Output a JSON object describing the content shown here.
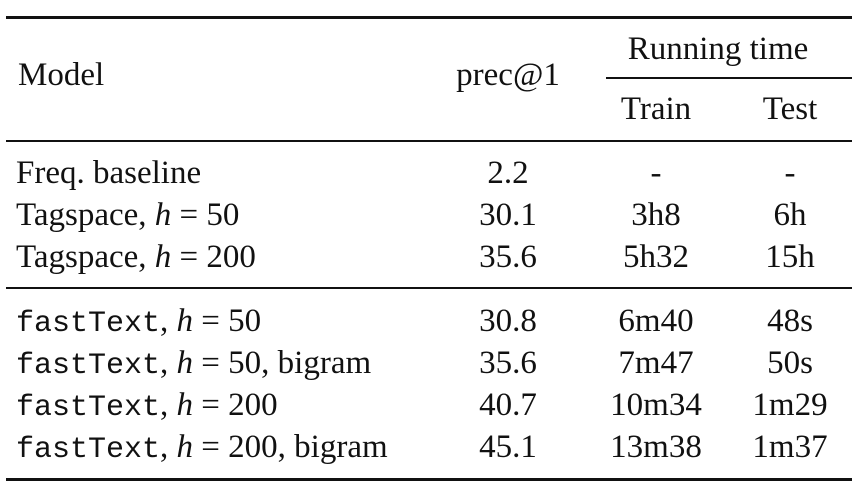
{
  "header": {
    "model": "Model",
    "prec": "prec@1",
    "running_time": "Running time",
    "train": "Train",
    "test": "Test"
  },
  "rows": [
    {
      "model": "Freq. baseline",
      "prec": "2.2",
      "train": "-",
      "test": "-"
    },
    {
      "model_pre": "Tagspace",
      "model_sep": ", ",
      "h_var": "h",
      "h_eq": " = 50",
      "prec": "30.1",
      "train": "3h8",
      "test": "6h"
    },
    {
      "model_pre": "Tagspace",
      "model_sep": ", ",
      "h_var": "h",
      "h_eq": " = 200",
      "prec": "35.6",
      "train": "5h32",
      "test": "15h"
    },
    {
      "model_pre": "fastText",
      "model_sep": ", ",
      "h_var": "h",
      "h_eq": " = 50",
      "prec": "30.8",
      "train": "6m40",
      "test": "48s"
    },
    {
      "model_pre": "fastText",
      "model_sep": ", ",
      "h_var": "h",
      "h_eq": " = 50",
      "suffix": ", bigram",
      "prec": "35.6",
      "train": "7m47",
      "test": "50s"
    },
    {
      "model_pre": "fastText",
      "model_sep": ", ",
      "h_var": "h",
      "h_eq": " = 200",
      "prec": "40.7",
      "train": "10m34",
      "test": "1m29"
    },
    {
      "model_pre": "fastText",
      "model_sep": ", ",
      "h_var": "h",
      "h_eq": " = 200",
      "suffix": ", bigram",
      "prec": "45.1",
      "train": "13m38",
      "test": "1m37"
    }
  ]
}
